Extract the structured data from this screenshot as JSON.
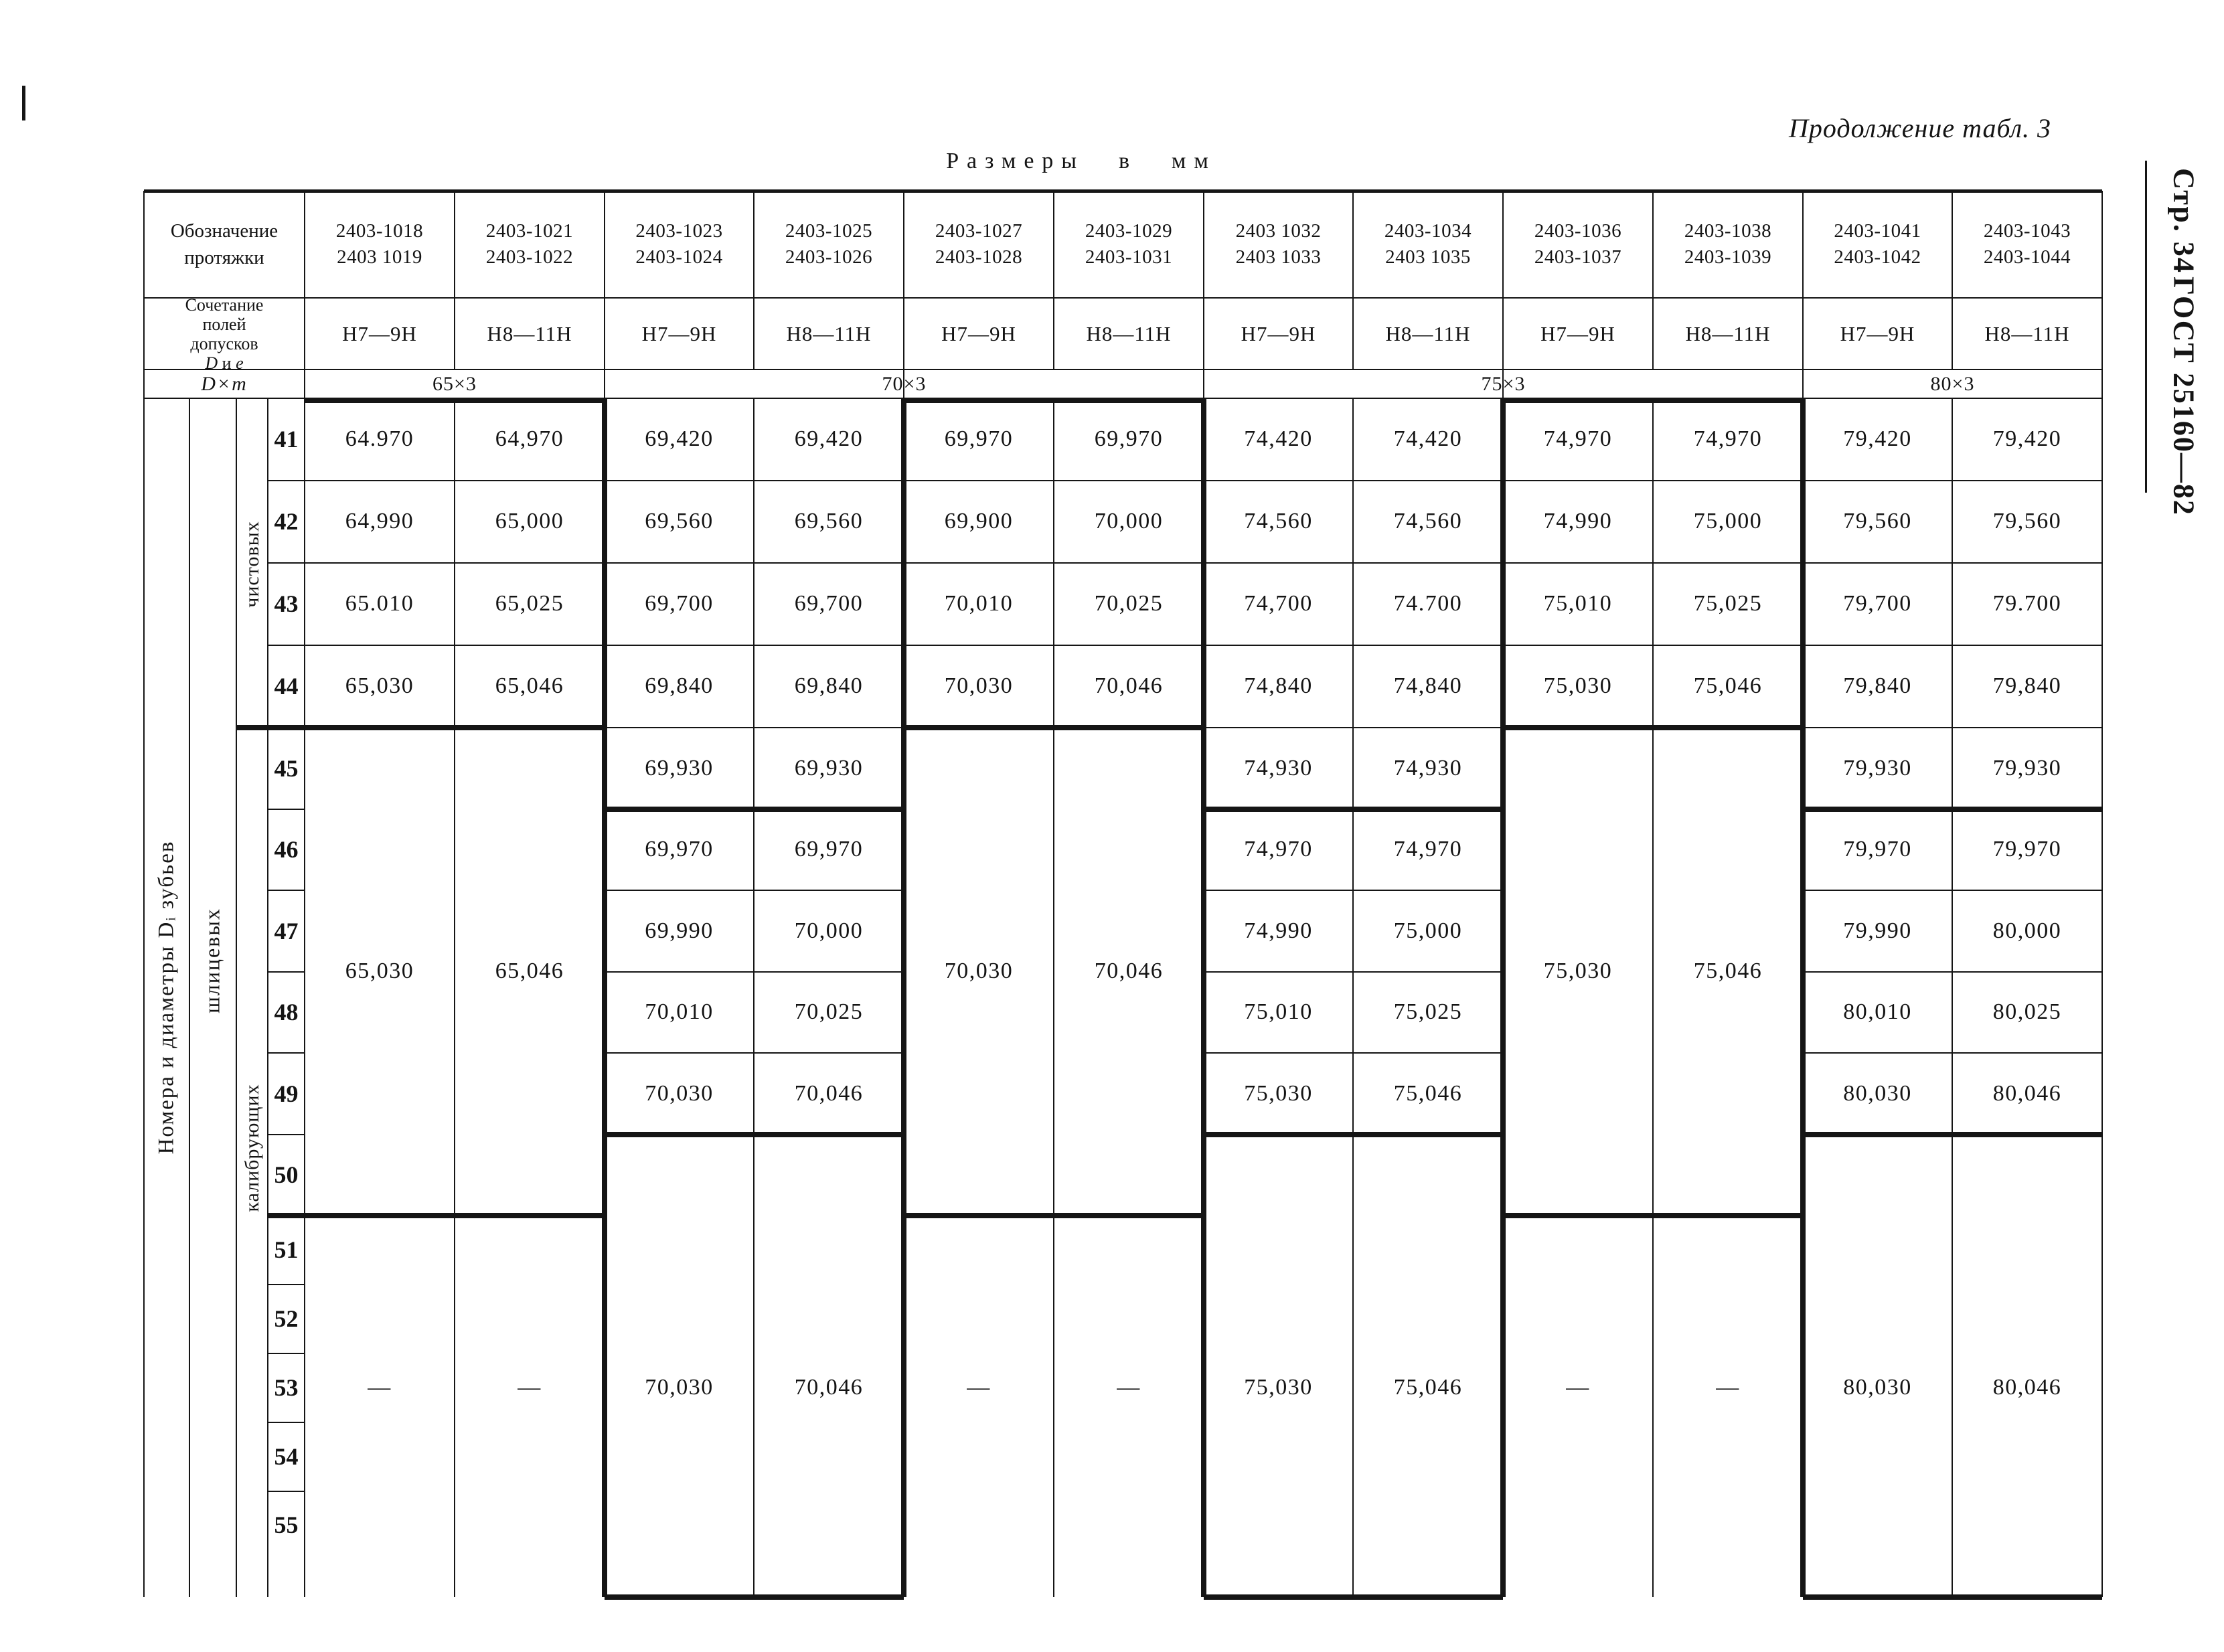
{
  "page": {
    "continuation_note": "Продолжение табл. 3",
    "size_note": "Размеры в мм",
    "margin": {
      "page_label": "Стр. 34",
      "gost_label": "ГОСТ 25160—82"
    }
  },
  "table": {
    "header": {
      "designation_label_lines": [
        "Обозначение",
        "протяжки"
      ],
      "tolerance_label_lines": [
        "Сочетание",
        "полей",
        "допусков"
      ],
      "tolerance_label_formula": {
        "d": "D",
        "and": " и ",
        "e": "e"
      },
      "dxm_label": "D×m",
      "columns": [
        {
          "designations": [
            "2403-1018",
            "2403 1019"
          ],
          "tolerance": "H7—9H"
        },
        {
          "designations": [
            "2403-1021",
            "2403-1022"
          ],
          "tolerance": "H8—11H"
        },
        {
          "designations": [
            "2403-1023",
            "2403-1024"
          ],
          "tolerance": "H7—9H"
        },
        {
          "designations": [
            "2403-1025",
            "2403-1026"
          ],
          "tolerance": "H8—11H"
        },
        {
          "designations": [
            "2403-1027",
            "2403-1028"
          ],
          "tolerance": "H7—9H"
        },
        {
          "designations": [
            "2403-1029",
            "2403-1031"
          ],
          "tolerance": "H8—11H"
        },
        {
          "designations": [
            "2403 1032",
            "2403 1033"
          ],
          "tolerance": "H7—9H"
        },
        {
          "designations": [
            "2403-1034",
            "2403 1035"
          ],
          "tolerance": "H8—11H"
        },
        {
          "designations": [
            "2403-1036",
            "2403-1037"
          ],
          "tolerance": "H7—9H"
        },
        {
          "designations": [
            "2403-1038",
            "2403-1039"
          ],
          "tolerance": "H8—11H"
        },
        {
          "designations": [
            "2403-1041",
            "2403-1042"
          ],
          "tolerance": "H7—9H"
        },
        {
          "designations": [
            "2403-1043",
            "2403-1044"
          ],
          "tolerance": "H8—11H"
        }
      ],
      "dxm_groups": [
        {
          "label": "65×3",
          "span": 2
        },
        {
          "label": "70×3",
          "span": 4
        },
        {
          "label": "75×3",
          "span": 4
        },
        {
          "label": "80×3",
          "span": 2
        }
      ]
    },
    "side": {
      "main_label": "Номера и диаметры Dᵢ зубьев",
      "group_label": "шлицевых",
      "sub_top": "чистовых",
      "sub_bottom": "калибрующих"
    },
    "row_numbers": [
      "41",
      "42",
      "43",
      "44",
      "45",
      "46",
      "47",
      "48",
      "49",
      "50",
      "51",
      "52",
      "53",
      "54",
      "55"
    ],
    "pairs": [
      {
        "type": "A",
        "cols": [
          {
            "finishing": [
              "64.970",
              "64,990",
              "65.010",
              "65,030"
            ],
            "calibrating": "65,030",
            "tail": "—"
          },
          {
            "finishing": [
              "64,970",
              "65,000",
              "65,025",
              "65,046"
            ],
            "calibrating": "65,046",
            "tail": "—"
          }
        ]
      },
      {
        "type": "B",
        "cols": [
          {
            "rows": [
              "69,420",
              "69,560",
              "69,700",
              "69,840",
              "69,930",
              "69,970",
              "69,990",
              "70,010",
              "70,030"
            ],
            "tail": "70,030"
          },
          {
            "rows": [
              "69,420",
              "69,560",
              "69,700",
              "69,840",
              "69,930",
              "69,970",
              "70,000",
              "70,025",
              "70,046"
            ],
            "tail": "70,046"
          }
        ]
      },
      {
        "type": "A",
        "cols": [
          {
            "finishing": [
              "69,970",
              "69,900",
              "70,010",
              "70,030"
            ],
            "calibrating": "70,030",
            "tail": "—"
          },
          {
            "finishing": [
              "69,970",
              "70,000",
              "70,025",
              "70,046"
            ],
            "calibrating": "70,046",
            "tail": "—"
          }
        ]
      },
      {
        "type": "B",
        "cols": [
          {
            "rows": [
              "74,420",
              "74,560",
              "74,700",
              "74,840",
              "74,930",
              "74,970",
              "74,990",
              "75,010",
              "75,030"
            ],
            "tail": "75,030"
          },
          {
            "rows": [
              "74,420",
              "74,560",
              "74.700",
              "74,840",
              "74,930",
              "74,970",
              "75,000",
              "75,025",
              "75,046"
            ],
            "tail": "75,046"
          }
        ]
      },
      {
        "type": "A",
        "cols": [
          {
            "finishing": [
              "74,970",
              "74,990",
              "75,010",
              "75,030"
            ],
            "calibrating": "75,030",
            "tail": "—"
          },
          {
            "finishing": [
              "74,970",
              "75,000",
              "75,025",
              "75,046"
            ],
            "calibrating": "75,046",
            "tail": "—"
          }
        ]
      },
      {
        "type": "B",
        "cols": [
          {
            "rows": [
              "79,420",
              "79,560",
              "79,700",
              "79,840",
              "79,930",
              "79,970",
              "79,990",
              "80,010",
              "80,030"
            ],
            "tail": "80,030"
          },
          {
            "rows": [
              "79,420",
              "79,560",
              "79.700",
              "79,840",
              "79,930",
              "79,970",
              "80,000",
              "80,025",
              "80,046"
            ],
            "tail": "80,046"
          }
        ]
      }
    ]
  }
}
